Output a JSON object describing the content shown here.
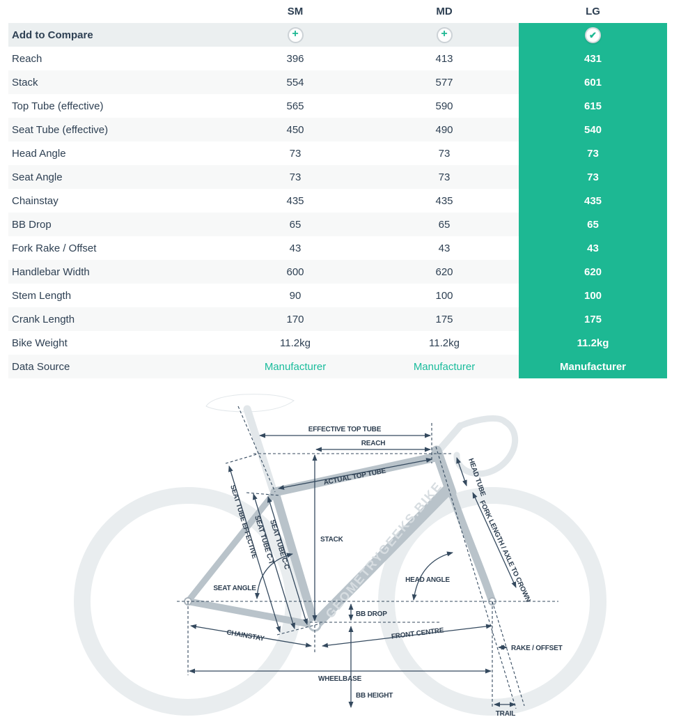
{
  "table": {
    "columns": [
      "SM",
      "MD",
      "LG"
    ],
    "selected_column": "LG",
    "compare_row_label": "Add to Compare",
    "icons": {
      "add": "plus-circle",
      "selected": "check-circle"
    },
    "rows": [
      {
        "label": "Reach",
        "values": [
          "396",
          "413",
          "431"
        ]
      },
      {
        "label": "Stack",
        "values": [
          "554",
          "577",
          "601"
        ]
      },
      {
        "label": "Top Tube (effective)",
        "values": [
          "565",
          "590",
          "615"
        ]
      },
      {
        "label": "Seat Tube (effective)",
        "values": [
          "450",
          "490",
          "540"
        ]
      },
      {
        "label": "Head Angle",
        "values": [
          "73",
          "73",
          "73"
        ]
      },
      {
        "label": "Seat Angle",
        "values": [
          "73",
          "73",
          "73"
        ]
      },
      {
        "label": "Chainstay",
        "values": [
          "435",
          "435",
          "435"
        ]
      },
      {
        "label": "BB Drop",
        "values": [
          "65",
          "65",
          "65"
        ]
      },
      {
        "label": "Fork Rake / Offset",
        "values": [
          "43",
          "43",
          "43"
        ]
      },
      {
        "label": "Handlebar Width",
        "values": [
          "600",
          "620",
          "620"
        ]
      },
      {
        "label": "Stem Length",
        "values": [
          "90",
          "100",
          "100"
        ]
      },
      {
        "label": "Crank Length",
        "values": [
          "170",
          "175",
          "175"
        ]
      },
      {
        "label": "Bike Weight",
        "values": [
          "11.2kg",
          "11.2kg",
          "11.2kg"
        ]
      },
      {
        "label": "Data Source",
        "values": [
          "Manufacturer",
          "Manufacturer",
          "Manufacturer"
        ],
        "link": true
      }
    ]
  },
  "diagram": {
    "watermark": "GEOMETRYGEEKS.BIKE",
    "labels": {
      "effective_top_tube": "EFFECTIVE TOP TUBE",
      "reach": "REACH",
      "actual_top_tube": "ACTUAL TOP TUBE",
      "head_tube": "HEAD TUBE",
      "fork_length": "FORK LENGTH / AXLE TO CROWN",
      "seat_tube_cc": "SEAT TUBE C-C",
      "seat_tube_ct": "SEAT TUBE C-T",
      "seat_tube_effective": "SEAT TUBE EFFECTIVE",
      "stack": "STACK",
      "seat_angle": "SEAT ANGLE",
      "head_angle": "HEAD ANGLE",
      "bb_drop": "BB DROP",
      "chainstay": "CHAINSTAY",
      "front_centre": "FRONT CENTRE",
      "rake_offset": "RAKE / OFFSET",
      "wheelbase": "WHEELBASE",
      "bb_height": "BB HEIGHT",
      "trail": "TRAIL"
    }
  },
  "colors": {
    "accent_teal": "#1db893",
    "link_teal": "#1abc9c",
    "text_navy": "#2e4053",
    "compare_row_bg": "#ebeff0",
    "row_stripe": "#f7f8f8",
    "diagram_frame": "#b9c3ca",
    "diagram_light": "#e2e7ea",
    "diagram_lines": "#34495e"
  }
}
